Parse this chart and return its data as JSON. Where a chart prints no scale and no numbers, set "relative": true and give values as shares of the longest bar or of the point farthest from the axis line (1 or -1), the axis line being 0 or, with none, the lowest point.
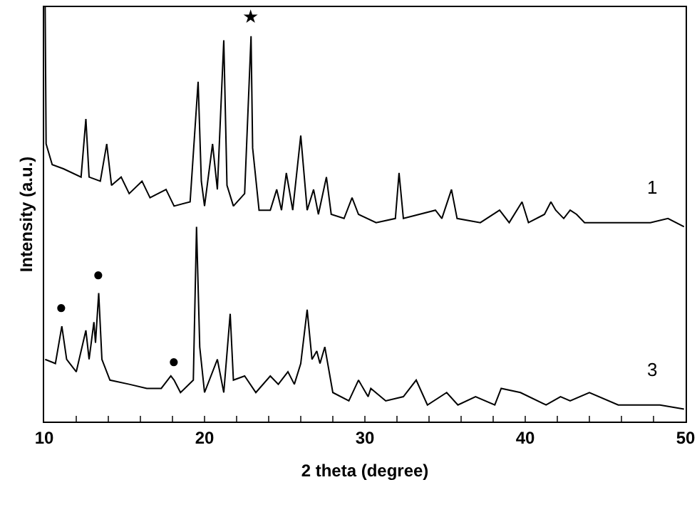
{
  "chart_data": {
    "type": "line",
    "relative": true,
    "xlabel": "2 theta (degree)",
    "ylabel": "Intensity (a.u.)",
    "xlim": [
      10,
      50
    ],
    "xticks": [
      10,
      {
        "value": 12,
        "label": null
      },
      {
        "value": 14,
        "label": null
      },
      {
        "value": 16,
        "label": null
      },
      {
        "value": 18,
        "label": null
      },
      20,
      {
        "value": 22,
        "label": null
      },
      {
        "value": 24,
        "label": null
      },
      {
        "value": 26,
        "label": null
      },
      {
        "value": 28,
        "label": null
      },
      30,
      {
        "value": 32,
        "label": null
      },
      {
        "value": 34,
        "label": null
      },
      {
        "value": 36,
        "label": null
      },
      {
        "value": 38,
        "label": null
      },
      40,
      {
        "value": 42,
        "label": null
      },
      {
        "value": 44,
        "label": null
      },
      {
        "value": 46,
        "label": null
      },
      {
        "value": 48,
        "label": null
      },
      50
    ],
    "grid": false,
    "legend": false,
    "marker": "none",
    "line_style": "solid",
    "series": [
      {
        "name": "1",
        "color": "#000000",
        "x": [
          10.06,
          10.12,
          10.5,
          11.2,
          12.3,
          12.6,
          12.8,
          13.5,
          13.9,
          14.2,
          14.8,
          15.3,
          16.1,
          16.6,
          17.6,
          18.1,
          19.1,
          19.6,
          19.8,
          20.0,
          20.5,
          20.8,
          21.2,
          21.4,
          21.8,
          22.5,
          22.9,
          23.0,
          23.4,
          24.1,
          24.5,
          24.8,
          25.1,
          25.5,
          26.0,
          26.4,
          26.8,
          27.1,
          27.6,
          27.9,
          28.7,
          29.2,
          29.6,
          30.7,
          31.9,
          32.13,
          32.4,
          34.4,
          34.8,
          35.4,
          35.75,
          37.2,
          38.4,
          39.0,
          39.8,
          40.2,
          41.2,
          41.6,
          41.9,
          42.4,
          42.8,
          43.2,
          43.7,
          45.2,
          46.7,
          47.8,
          48.9,
          49.9
        ],
        "values": [
          1.0,
          0.67,
          0.62,
          0.61,
          0.59,
          0.73,
          0.59,
          0.58,
          0.67,
          0.57,
          0.59,
          0.55,
          0.58,
          0.54,
          0.56,
          0.52,
          0.53,
          0.82,
          0.58,
          0.52,
          0.67,
          0.56,
          0.92,
          0.57,
          0.52,
          0.55,
          0.93,
          0.66,
          0.51,
          0.51,
          0.56,
          0.51,
          0.6,
          0.51,
          0.69,
          0.51,
          0.56,
          0.5,
          0.59,
          0.5,
          0.49,
          0.54,
          0.5,
          0.48,
          0.49,
          0.6,
          0.49,
          0.51,
          0.49,
          0.56,
          0.49,
          0.48,
          0.51,
          0.48,
          0.53,
          0.48,
          0.5,
          0.53,
          0.51,
          0.49,
          0.51,
          0.5,
          0.48,
          0.48,
          0.48,
          0.48,
          0.49,
          0.47
        ]
      },
      {
        "name": "3",
        "color": "#000000",
        "x": [
          10.06,
          10.7,
          11.1,
          11.4,
          12.0,
          12.6,
          12.8,
          13.1,
          13.2,
          13.4,
          13.6,
          14.1,
          15.3,
          16.4,
          17.3,
          17.9,
          18.1,
          18.5,
          19.3,
          19.5,
          19.7,
          20.0,
          20.8,
          21.2,
          21.6,
          21.8,
          22.5,
          23.2,
          24.1,
          24.6,
          25.2,
          25.6,
          26.0,
          26.4,
          26.7,
          27.0,
          27.2,
          27.5,
          28.0,
          29.0,
          29.6,
          30.2,
          30.37,
          31.3,
          32.4,
          33.2,
          33.9,
          35.1,
          35.8,
          36.9,
          38.1,
          38.5,
          39.7,
          41.3,
          42.2,
          42.8,
          44.0,
          45.8,
          47.2,
          48.4,
          49.9
        ],
        "values": [
          0.15,
          0.14,
          0.23,
          0.15,
          0.12,
          0.22,
          0.15,
          0.24,
          0.19,
          0.31,
          0.15,
          0.1,
          0.09,
          0.08,
          0.08,
          0.11,
          0.1,
          0.07,
          0.1,
          0.47,
          0.18,
          0.07,
          0.15,
          0.07,
          0.26,
          0.1,
          0.11,
          0.07,
          0.11,
          0.09,
          0.12,
          0.09,
          0.14,
          0.27,
          0.15,
          0.17,
          0.14,
          0.18,
          0.07,
          0.05,
          0.1,
          0.06,
          0.08,
          0.05,
          0.06,
          0.1,
          0.04,
          0.07,
          0.04,
          0.06,
          0.04,
          0.08,
          0.07,
          0.04,
          0.06,
          0.05,
          0.07,
          0.04,
          0.04,
          0.04,
          0.03
        ]
      }
    ],
    "annotations": [
      {
        "text": "★",
        "x": 22.9,
        "y": 0.93
      },
      {
        "text": "●",
        "x": 11.1,
        "y": 0.23
      },
      {
        "text": "●",
        "x": 13.4,
        "y": 0.31
      },
      {
        "text": "●",
        "x": 18.1,
        "y": 0.1
      }
    ]
  }
}
